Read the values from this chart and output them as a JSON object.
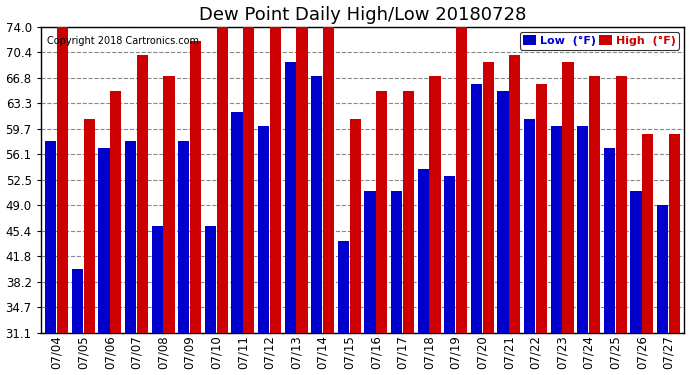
{
  "title": "Dew Point Daily High/Low 20180728",
  "copyright": "Copyright 2018 Cartronics.com",
  "dates": [
    "07/04",
    "07/05",
    "07/06",
    "07/07",
    "07/08",
    "07/09",
    "07/10",
    "07/11",
    "07/12",
    "07/13",
    "07/14",
    "07/15",
    "07/16",
    "07/17",
    "07/18",
    "07/19",
    "07/20",
    "07/21",
    "07/22",
    "07/23",
    "07/24",
    "07/25",
    "07/26",
    "07/27"
  ],
  "low": [
    58,
    40,
    57,
    58,
    46,
    58,
    46,
    62,
    60,
    69,
    67,
    44,
    51,
    51,
    54,
    53,
    66,
    65,
    61,
    60,
    60,
    57,
    51,
    49
  ],
  "high": [
    74,
    61,
    65,
    70,
    67,
    72,
    74,
    74,
    74,
    74,
    74,
    61,
    65,
    65,
    67,
    74,
    69,
    70,
    66,
    69,
    67,
    67,
    59,
    59
  ],
  "low_color": "#0000cc",
  "high_color": "#cc0000",
  "bg_color": "#ffffff",
  "plot_bg_color": "#ffffff",
  "grid_color": "#888888",
  "ylim_min": 31.1,
  "ylim_max": 74.0,
  "yticks": [
    31.1,
    34.7,
    38.2,
    41.8,
    45.4,
    49.0,
    52.5,
    56.1,
    59.7,
    63.3,
    66.8,
    70.4,
    74.0
  ],
  "title_fontsize": 13,
  "tick_fontsize": 8.5,
  "legend_label_low": "Low  (°F)",
  "legend_label_high": "High  (°F)"
}
